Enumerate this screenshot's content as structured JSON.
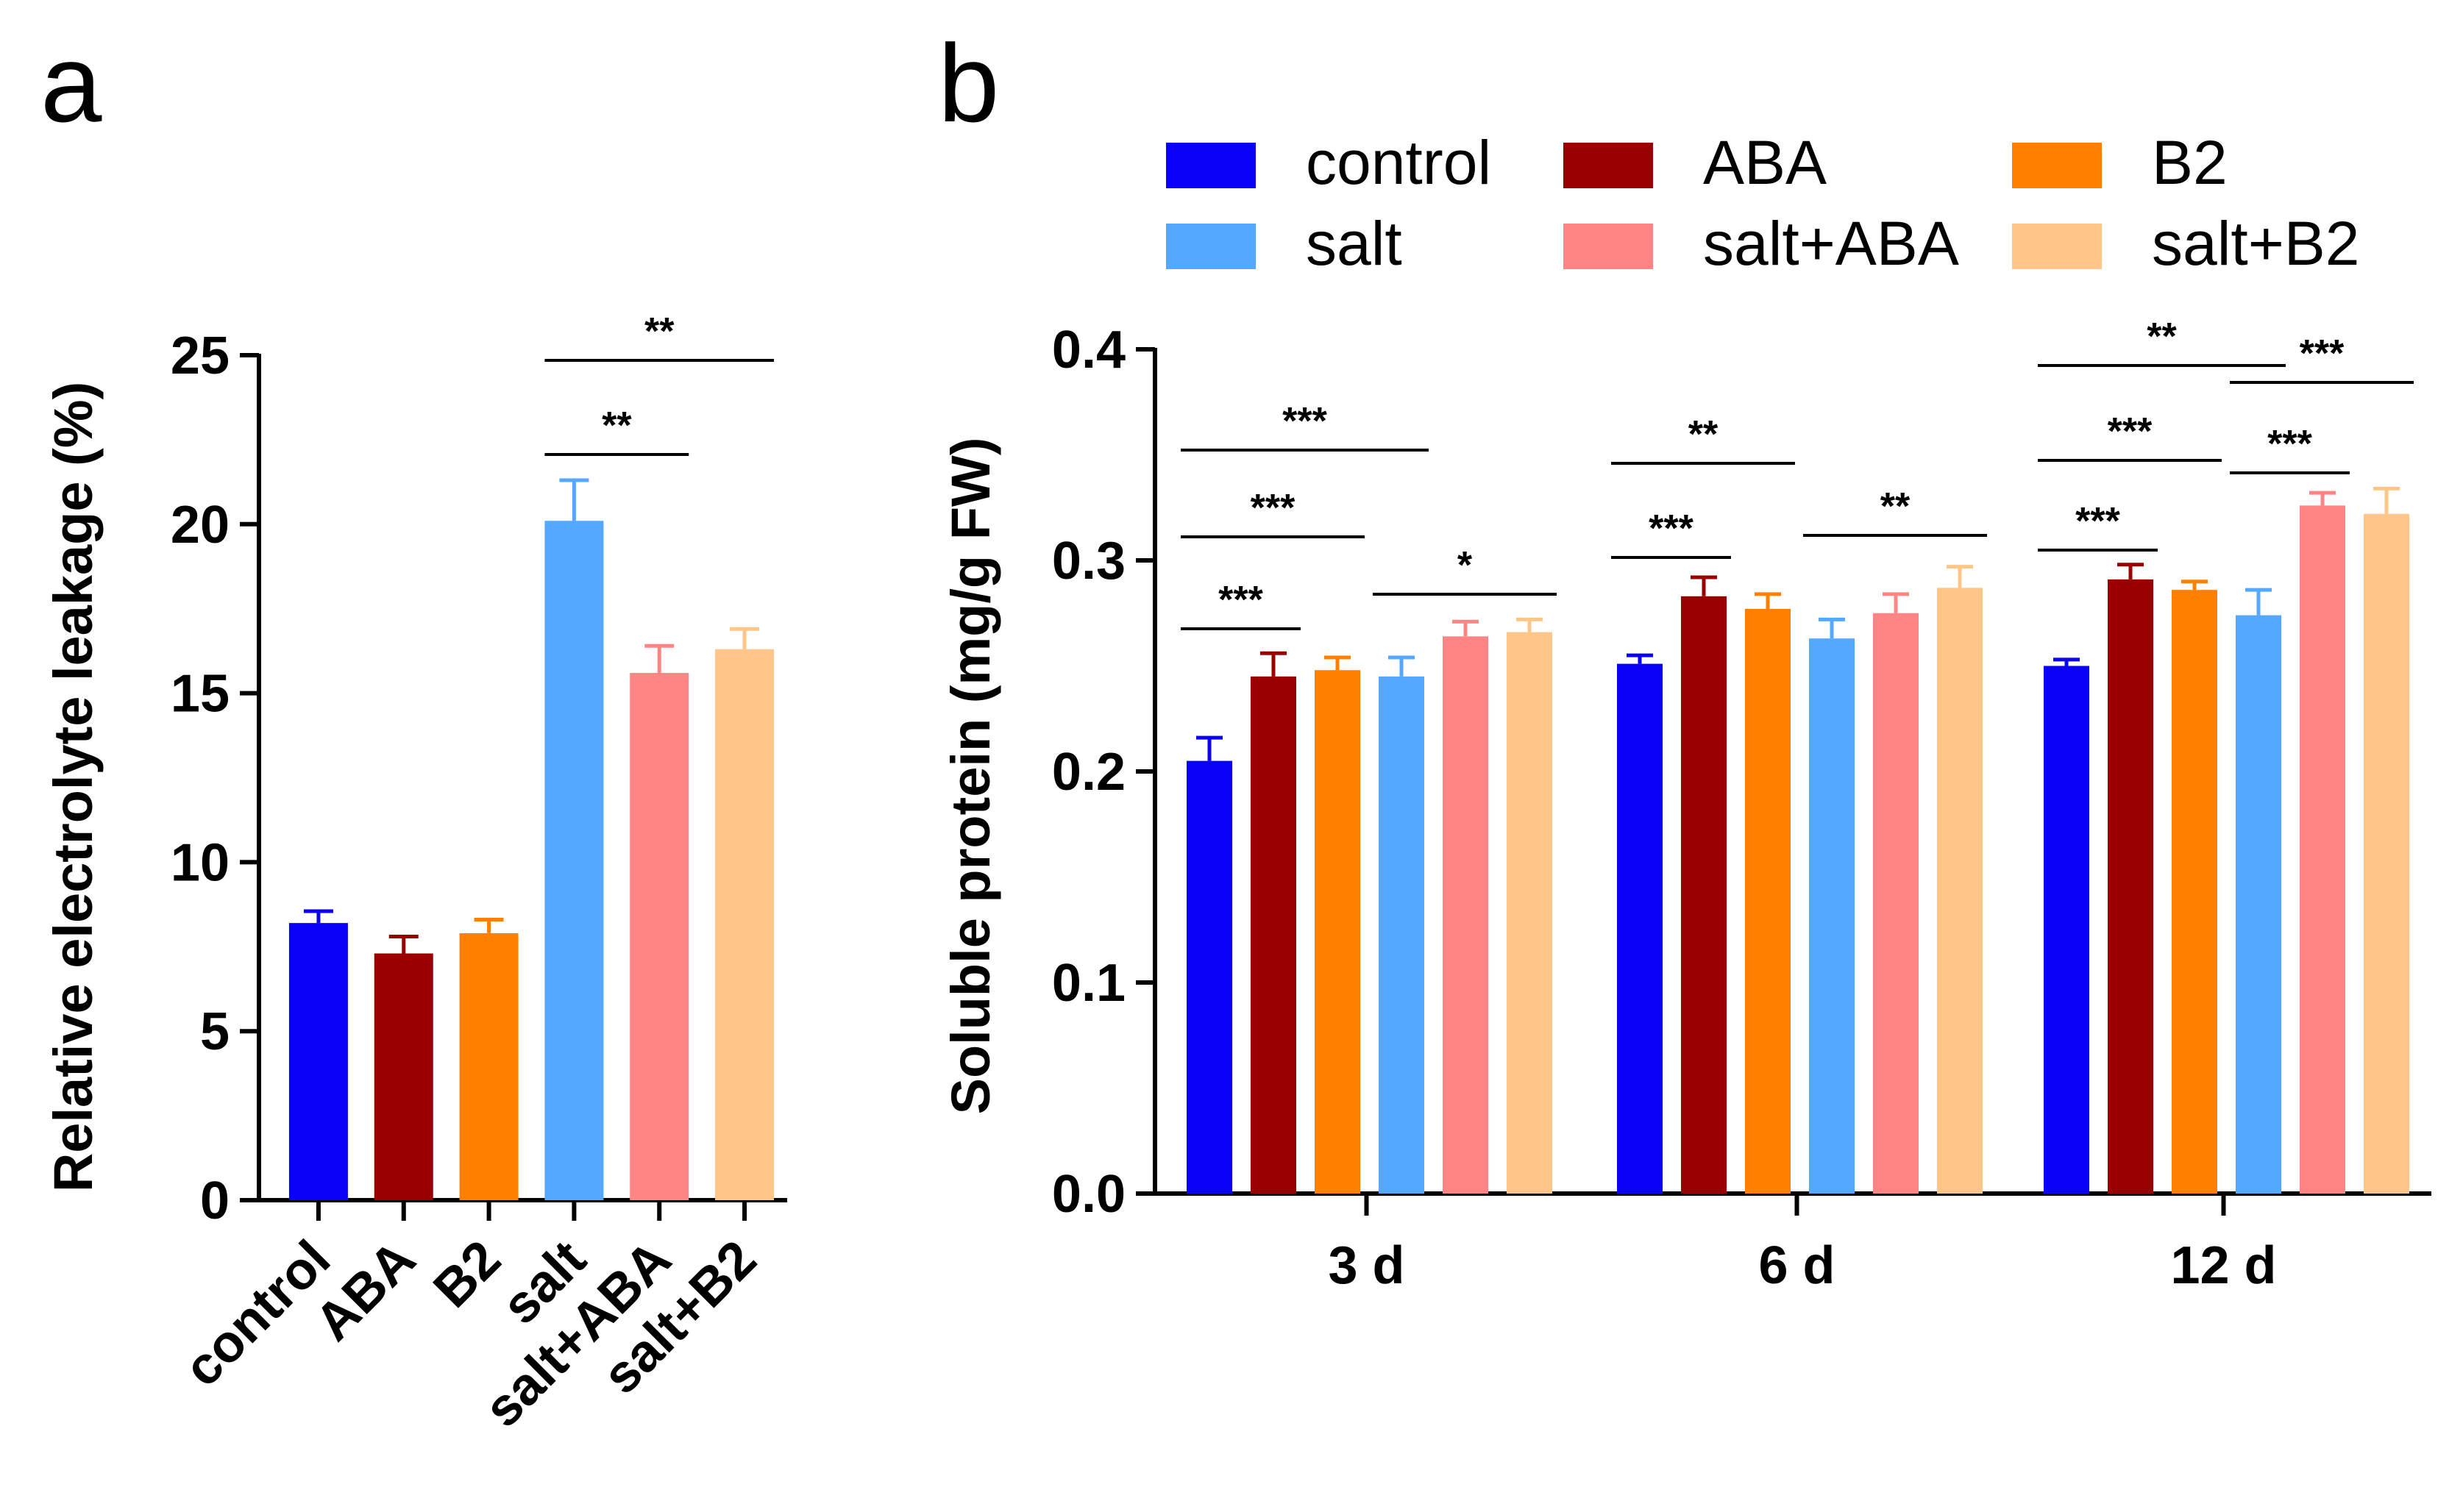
{
  "colors": {
    "control": "#0a00f5",
    "ABA": "#9b0000",
    "B2": "#ff8000",
    "salt": "#55a8ff",
    "salt+ABA": "#ff8585",
    "salt+B2": "#ffc688"
  },
  "chart_data": [
    {
      "panel": "a",
      "type": "bar",
      "title": "",
      "xlabel": "",
      "ylabel": "Relative electrolyte leakage (%)",
      "ylim": [
        0,
        25
      ],
      "yticks": [
        "0",
        "5",
        "10",
        "15",
        "20",
        "25"
      ],
      "categories": [
        "control",
        "ABA",
        "B2",
        "salt",
        "salt+ABA",
        "salt+B2"
      ],
      "values": [
        8.2,
        7.3,
        7.9,
        20.1,
        15.6,
        16.3
      ],
      "errors": [
        0.35,
        0.5,
        0.4,
        1.2,
        0.8,
        0.6
      ],
      "significance": [
        {
          "from": "salt",
          "to": "salt+ABA",
          "label": "**"
        },
        {
          "from": "salt",
          "to": "salt+B2",
          "label": "**"
        }
      ]
    },
    {
      "panel": "b",
      "type": "bar",
      "title": "",
      "xlabel": "",
      "ylabel": "Soluble protein (mg/g FW)",
      "ylim": [
        0,
        0.4
      ],
      "yticks": [
        "0.0",
        "0.1",
        "0.2",
        "0.3",
        "0.4"
      ],
      "categories": [
        "3 d",
        "6 d",
        "12 d"
      ],
      "legend": [
        "control",
        "ABA",
        "B2",
        "salt",
        "salt+ABA",
        "salt+B2"
      ],
      "series": [
        {
          "name": "control",
          "values": [
            0.205,
            0.251,
            0.25
          ],
          "errors": [
            0.011,
            0.004,
            0.003
          ]
        },
        {
          "name": "ABA",
          "values": [
            0.245,
            0.283,
            0.291
          ],
          "errors": [
            0.011,
            0.009,
            0.007
          ]
        },
        {
          "name": "B2",
          "values": [
            0.248,
            0.277,
            0.286
          ],
          "errors": [
            0.006,
            0.007,
            0.004
          ]
        },
        {
          "name": "salt",
          "values": [
            0.245,
            0.263,
            0.274
          ],
          "errors": [
            0.009,
            0.009,
            0.012
          ]
        },
        {
          "name": "salt+ABA",
          "values": [
            0.264,
            0.275,
            0.326
          ],
          "errors": [
            0.007,
            0.009,
            0.006
          ]
        },
        {
          "name": "salt+B2",
          "values": [
            0.266,
            0.287,
            0.322
          ],
          "errors": [
            0.006,
            0.01,
            0.012
          ]
        }
      ],
      "significance": [
        {
          "group": "3 d",
          "from": "control",
          "to": "ABA",
          "label": "***"
        },
        {
          "group": "3 d",
          "from": "control",
          "to": "B2",
          "label": "***"
        },
        {
          "group": "3 d",
          "from": "control",
          "to": "salt",
          "label": "***"
        },
        {
          "group": "3 d",
          "from": "salt",
          "to": "salt+B2",
          "label": "*"
        },
        {
          "group": "6 d",
          "from": "control",
          "to": "ABA",
          "label": "***"
        },
        {
          "group": "6 d",
          "from": "control",
          "to": "B2",
          "label": "**"
        },
        {
          "group": "6 d",
          "from": "salt",
          "to": "salt+B2",
          "label": "**"
        },
        {
          "group": "12 d",
          "from": "control",
          "to": "ABA",
          "label": "***"
        },
        {
          "group": "12 d",
          "from": "control",
          "to": "B2",
          "label": "***"
        },
        {
          "group": "12 d",
          "from": "control",
          "to": "salt",
          "label": "**"
        },
        {
          "group": "12 d",
          "from": "salt",
          "to": "salt+ABA",
          "label": "***"
        },
        {
          "group": "12 d",
          "from": "salt",
          "to": "salt+B2",
          "label": "***"
        }
      ]
    }
  ]
}
